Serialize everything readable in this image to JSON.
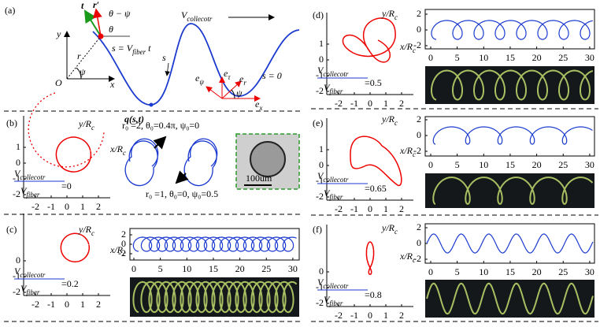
{
  "panel_a": {
    "label": "(a)",
    "t": "t",
    "r_prime": "r′",
    "theta_minus_psi": "θ − ψ",
    "theta": "θ",
    "y": "y",
    "r": "r",
    "s_eq": {
      "base": "s = V",
      "sub": "fiber",
      "tail": " t"
    },
    "origin": "O",
    "psi": "ψ",
    "x": "x",
    "v_collector": {
      "base": "V",
      "sub": "collecotr"
    },
    "s": "s",
    "q": "q(s,t)",
    "e_psi": {
      "base": "e",
      "sub": "ψ"
    },
    "e_tau": {
      "base": "e",
      "sub": "τ"
    },
    "e_r": {
      "base": "e",
      "sub": "r"
    },
    "psi2": "ψ",
    "e_x": {
      "base": "e",
      "sub": "x"
    },
    "s0": "s = 0"
  },
  "panels": [
    {
      "label": "(b)",
      "y_label": {
        "base": "y/R",
        "sub": "c"
      },
      "x_label": {
        "base": "x/R",
        "sub": "c"
      },
      "xticks": [
        -2,
        -1,
        0,
        1,
        2
      ],
      "yticks": [
        1,
        0,
        -1,
        -2
      ],
      "numerator": {
        "base": "V",
        "sub": "collecotr"
      },
      "denominator": {
        "base": "V",
        "sub": "fiber"
      },
      "ratio": "=0",
      "note1": "r₀ =2, θ₀=0.4π, ψ₀=0",
      "note2": "r₀ =1, θ₀=0, ψ₀=0.5",
      "scale": "100um"
    },
    {
      "label": "(c)",
      "y_label": {
        "base": "y/R",
        "sub": "c"
      },
      "x_label": {
        "base": "x/R",
        "sub": "c"
      },
      "xticks": [
        -2,
        -1,
        0,
        1,
        2
      ],
      "yticks": [
        0,
        -1,
        -2
      ],
      "numerator": {
        "base": "V",
        "sub": "collecotr"
      },
      "denominator": {
        "base": "V",
        "sub": "fiber"
      },
      "ratio": "=0.2",
      "line_xticks": [
        0,
        5,
        10,
        15,
        20,
        25,
        30
      ],
      "line_yticks": [
        2,
        0,
        -2
      ]
    },
    {
      "label": "(d)",
      "y_label": {
        "base": "y/R",
        "sub": "c"
      },
      "x_label": {
        "base": "x/R",
        "sub": "c"
      },
      "xticks": [
        -2,
        -1,
        0,
        1,
        2
      ],
      "yticks": [
        1,
        0,
        -1,
        -2
      ],
      "numerator": {
        "base": "V",
        "sub": "collecotr"
      },
      "denominator": {
        "base": "V",
        "sub": "fiber"
      },
      "ratio": "=0.5",
      "line_xticks": [
        0,
        5,
        10,
        15,
        20,
        25,
        30
      ],
      "line_yticks": [
        2,
        0,
        -2
      ]
    },
    {
      "label": "(e)",
      "y_label": {
        "base": "y/R",
        "sub": "c"
      },
      "x_label": {
        "base": "x/R",
        "sub": "c"
      },
      "xticks": [
        -2,
        -1,
        0,
        1,
        2
      ],
      "yticks": [
        1,
        0,
        -1,
        -2
      ],
      "numerator": {
        "base": "V",
        "sub": "collecotr"
      },
      "denominator": {
        "base": "V",
        "sub": "fiber"
      },
      "ratio": "=0.65",
      "line_xticks": [
        0,
        5,
        10,
        15,
        20,
        25,
        30
      ],
      "line_yticks": [
        2,
        0,
        -2
      ]
    },
    {
      "label": "(f)",
      "y_label": {
        "base": "y/R",
        "sub": "c"
      },
      "x_label": {
        "base": "x/R",
        "sub": "c"
      },
      "xticks": [
        -2,
        -1,
        0,
        1,
        2
      ],
      "yticks": [
        0,
        -1,
        -2
      ],
      "numerator": {
        "base": "V",
        "sub": "collecotr"
      },
      "denominator": {
        "base": "V",
        "sub": "fiber"
      },
      "ratio": "=0.8",
      "line_xticks": [
        0,
        5,
        10,
        15,
        20,
        25,
        30
      ],
      "line_yticks": [
        2,
        0,
        -2
      ]
    }
  ]
}
